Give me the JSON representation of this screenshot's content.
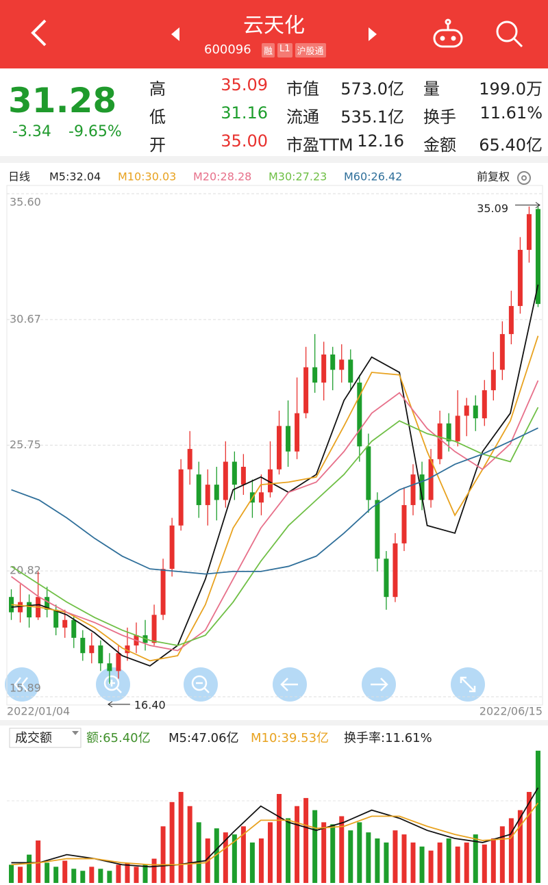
{
  "header": {
    "title": "云天化",
    "code": "600096",
    "badges": [
      "融",
      "L1",
      "沪股通"
    ]
  },
  "quote": {
    "price": "31.28",
    "change": "-3.34",
    "change_pct": "-9.65%",
    "rows": [
      [
        "高",
        "35.09",
        "市值",
        "573.0亿",
        "量",
        "199.0万"
      ],
      [
        "低",
        "31.16",
        "流通",
        "535.1亿",
        "换手",
        "11.61%"
      ],
      [
        "开",
        "35.00",
        "市盈TTM",
        "12.16",
        "金额",
        "65.40亿"
      ]
    ]
  },
  "chart_data": {
    "type": "candlestick",
    "period": "日线",
    "adjust": "前复权",
    "x_start": "2022/01/04",
    "x_end": "2022/06/15",
    "high_label": "35.09",
    "low_label": "16.40",
    "ylim": [
      15.89,
      35.6
    ],
    "yticks": [
      {
        "value": 35.6,
        "label": "35.60"
      },
      30.67,
      25.75,
      20.82,
      15.89
    ],
    "grid": true,
    "up_color": "#e8312e",
    "down_color": "#1d9e2c",
    "candles": [
      [
        19.8,
        19.2,
        20.1,
        18.9
      ],
      [
        19.2,
        19.6,
        20.3,
        18.8
      ],
      [
        19.6,
        19.0,
        19.9,
        18.6
      ],
      [
        19.0,
        19.8,
        20.8,
        18.9
      ],
      [
        19.8,
        19.3,
        20.2,
        19.0
      ],
      [
        19.3,
        18.6,
        19.5,
        18.3
      ],
      [
        18.6,
        18.9,
        19.3,
        18.2
      ],
      [
        18.9,
        18.2,
        19.1,
        17.8
      ],
      [
        18.2,
        17.6,
        18.5,
        17.3
      ],
      [
        17.6,
        17.9,
        18.4,
        17.2
      ],
      [
        17.9,
        17.2,
        18.1,
        16.9
      ],
      [
        17.2,
        16.9,
        17.6,
        16.4
      ],
      [
        16.9,
        17.6,
        17.9,
        16.6
      ],
      [
        17.6,
        17.9,
        18.6,
        17.3
      ],
      [
        17.9,
        18.3,
        18.8,
        17.6
      ],
      [
        18.3,
        18.0,
        18.9,
        17.7
      ],
      [
        18.0,
        19.1,
        19.5,
        17.9
      ],
      [
        19.1,
        20.9,
        21.3,
        18.9
      ],
      [
        20.9,
        22.6,
        22.9,
        20.6
      ],
      [
        22.6,
        24.8,
        25.2,
        22.4
      ],
      [
        24.8,
        25.6,
        26.3,
        24.2
      ],
      [
        24.6,
        23.4,
        25.1,
        22.9
      ],
      [
        23.4,
        24.2,
        24.8,
        22.6
      ],
      [
        24.2,
        23.6,
        24.9,
        22.8
      ],
      [
        23.6,
        25.1,
        25.9,
        23.3
      ],
      [
        25.1,
        24.2,
        25.5,
        23.6
      ],
      [
        24.2,
        24.9,
        25.4,
        23.8
      ],
      [
        23.9,
        23.5,
        24.4,
        22.9
      ],
      [
        23.5,
        23.9,
        24.6,
        23.0
      ],
      [
        23.9,
        24.8,
        25.9,
        23.7
      ],
      [
        24.8,
        26.5,
        27.1,
        24.6
      ],
      [
        26.5,
        25.5,
        27.5,
        24.9
      ],
      [
        25.5,
        27.0,
        28.4,
        25.2
      ],
      [
        27.0,
        28.8,
        29.6,
        26.8
      ],
      [
        28.8,
        28.2,
        30.1,
        27.8
      ],
      [
        28.2,
        29.3,
        29.8,
        27.5
      ],
      [
        29.3,
        28.7,
        29.6,
        27.9
      ],
      [
        28.7,
        29.1,
        29.7,
        28.2
      ],
      [
        29.1,
        28.2,
        29.5,
        27.9
      ],
      [
        28.2,
        25.7,
        28.5,
        25.1
      ],
      [
        25.7,
        23.6,
        26.2,
        23.1
      ],
      [
        23.6,
        21.3,
        23.9,
        20.8
      ],
      [
        21.3,
        19.8,
        21.6,
        19.3
      ],
      [
        19.8,
        21.9,
        22.3,
        19.6
      ],
      [
        21.9,
        23.4,
        24.1,
        21.6
      ],
      [
        23.4,
        24.6,
        25.0,
        23.0
      ],
      [
        24.6,
        23.6,
        25.1,
        23.2
      ],
      [
        23.6,
        25.2,
        25.6,
        23.3
      ],
      [
        25.2,
        26.6,
        27.1,
        25.0
      ],
      [
        26.6,
        25.9,
        27.0,
        25.5
      ],
      [
        25.9,
        26.9,
        27.9,
        25.7
      ],
      [
        26.9,
        27.3,
        27.6,
        26.1
      ],
      [
        27.3,
        26.8,
        27.7,
        26.3
      ],
      [
        26.8,
        27.9,
        28.3,
        26.5
      ],
      [
        27.9,
        28.7,
        29.4,
        27.5
      ],
      [
        28.7,
        30.1,
        30.6,
        28.3
      ],
      [
        30.1,
        31.2,
        31.8,
        29.7
      ],
      [
        31.2,
        33.4,
        33.9,
        30.9
      ],
      [
        33.4,
        34.8,
        35.1,
        32.9
      ],
      [
        35.0,
        31.28,
        35.09,
        31.16
      ]
    ],
    "series": [
      {
        "name": "M5:32.04",
        "color": "#111111",
        "values": [
          19.4,
          19.5,
          19.1,
          18.4,
          17.5,
          17.1,
          17.9,
          20.5,
          24.0,
          24.5,
          23.9,
          24.6,
          27.5,
          29.2,
          28.6,
          22.6,
          22.3,
          25.5,
          27.0,
          32.04
        ]
      },
      {
        "name": "M10:30.03",
        "color": "#e8a21f",
        "values": [
          19.5,
          19.4,
          19.2,
          18.6,
          17.8,
          17.3,
          17.5,
          19.5,
          22.5,
          24.2,
          24.3,
          24.5,
          26.5,
          28.6,
          28.5,
          25.5,
          23.0,
          24.8,
          26.7,
          30.03
        ]
      },
      {
        "name": "M20:28.28",
        "color": "#e7708a",
        "values": [
          20.6,
          19.8,
          19.2,
          18.8,
          18.3,
          17.9,
          17.7,
          18.5,
          20.5,
          22.5,
          23.9,
          24.3,
          25.5,
          27.0,
          27.8,
          26.4,
          25.5,
          24.8,
          25.8,
          28.28
        ]
      },
      {
        "name": "M30:27.23",
        "color": "#6fbf45",
        "values": [
          21.0,
          20.3,
          19.6,
          19.0,
          18.5,
          18.1,
          17.9,
          18.3,
          19.6,
          21.2,
          22.6,
          23.6,
          24.6,
          25.9,
          26.7,
          26.2,
          25.9,
          25.4,
          25.1,
          27.23
        ]
      },
      {
        "name": "M60:26.42",
        "color": "#2f6f9a",
        "values": [
          24.0,
          23.6,
          22.9,
          22.1,
          21.4,
          20.9,
          20.8,
          20.7,
          20.8,
          20.8,
          21.0,
          21.4,
          22.3,
          23.3,
          24.0,
          24.4,
          25.0,
          25.4,
          25.9,
          26.42
        ]
      }
    ],
    "volume": {
      "type": "bar",
      "selector": "成交额",
      "amount_label": "额:65.40亿",
      "turnover_label": "换手率:11.61%",
      "ylim": [
        0,
        66
      ],
      "values": [
        9,
        8,
        14,
        21,
        10,
        8,
        11,
        7,
        6,
        8,
        7,
        6,
        9,
        10,
        8,
        9,
        12,
        28,
        40,
        45,
        38,
        30,
        22,
        27,
        25,
        24,
        28,
        20,
        22,
        30,
        44,
        32,
        38,
        42,
        36,
        30,
        29,
        33,
        26,
        30,
        25,
        22,
        20,
        26,
        24,
        20,
        18,
        16,
        20,
        22,
        18,
        20,
        24,
        19,
        22,
        28,
        32,
        36,
        45,
        65.4
      ],
      "series": [
        {
          "name": "M5:47.06亿",
          "color": "#111111",
          "values": [
            10,
            10,
            14,
            12,
            9,
            8,
            9,
            11,
            25,
            38,
            30,
            26,
            30,
            36,
            32,
            26,
            22,
            20,
            24,
            47.06
          ]
        },
        {
          "name": "M10:39.53亿",
          "color": "#e8a21f",
          "values": [
            9,
            10,
            12,
            12,
            10,
            9,
            9,
            10,
            20,
            31,
            31,
            27,
            28,
            33,
            33,
            28,
            24,
            21,
            22,
            39.53
          ]
        }
      ]
    }
  }
}
